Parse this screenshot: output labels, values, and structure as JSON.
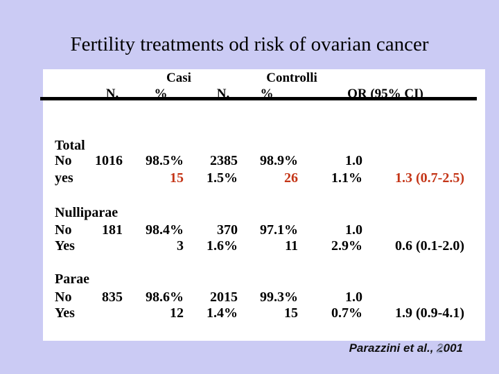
{
  "slide": {
    "title": "Fertility treatments od risk of ovarian cancer",
    "citation": "Parazzini et al., 2001",
    "page_number": "2"
  },
  "table": {
    "header": {
      "casi": "Casi",
      "controlli": "Controlli",
      "n_casi": "N.",
      "pct_casi": "%",
      "n_controlli": "N.",
      "pct_controlli": "%",
      "or": "OR (95% CI)"
    },
    "sections": [
      {
        "label": "Total",
        "rows": [
          {
            "label": "No",
            "c1": "1016",
            "c2": "98.5%",
            "c3": "2385",
            "c4": "98.9%",
            "c5": "1.0",
            "c6": ""
          },
          {
            "label": "yes",
            "c1": "",
            "c2": "15",
            "c3": "1.5%",
            "c4": "26",
            "c5": "1.1%",
            "c6": "1.3 (0.7-2.5)",
            "highlight": [
              "c2",
              "c4",
              "c6"
            ]
          }
        ]
      },
      {
        "label": "Nulliparae",
        "rows": [
          {
            "label": "No",
            "c1": "181",
            "c2": "98.4%",
            "c3": "370",
            "c4": "97.1%",
            "c5": "1.0",
            "c6": ""
          },
          {
            "label": "Yes",
            "c1": "",
            "c2": "3",
            "c3": "1.6%",
            "c4": "11",
            "c5": "2.9%",
            "c6": "0.6 (0.1-2.0)"
          }
        ]
      },
      {
        "label": "Parae",
        "rows": [
          {
            "label": "No",
            "c1": "835",
            "c2": "98.6%",
            "c3": "2015",
            "c4": "99.3%",
            "c5": "1.0",
            "c6": ""
          },
          {
            "label": "Yes",
            "c1": "",
            "c2": "12",
            "c3": "1.4%",
            "c4": "15",
            "c5": "0.7%",
            "c6": "1.9 (0.9-4.1)"
          }
        ]
      }
    ]
  },
  "colors": {
    "background": "#cbcbf4",
    "panel": "#ffffff",
    "divider": "#000000",
    "highlight_red": "#c43517",
    "page_number": "#aab0d8",
    "text": "#000000"
  }
}
